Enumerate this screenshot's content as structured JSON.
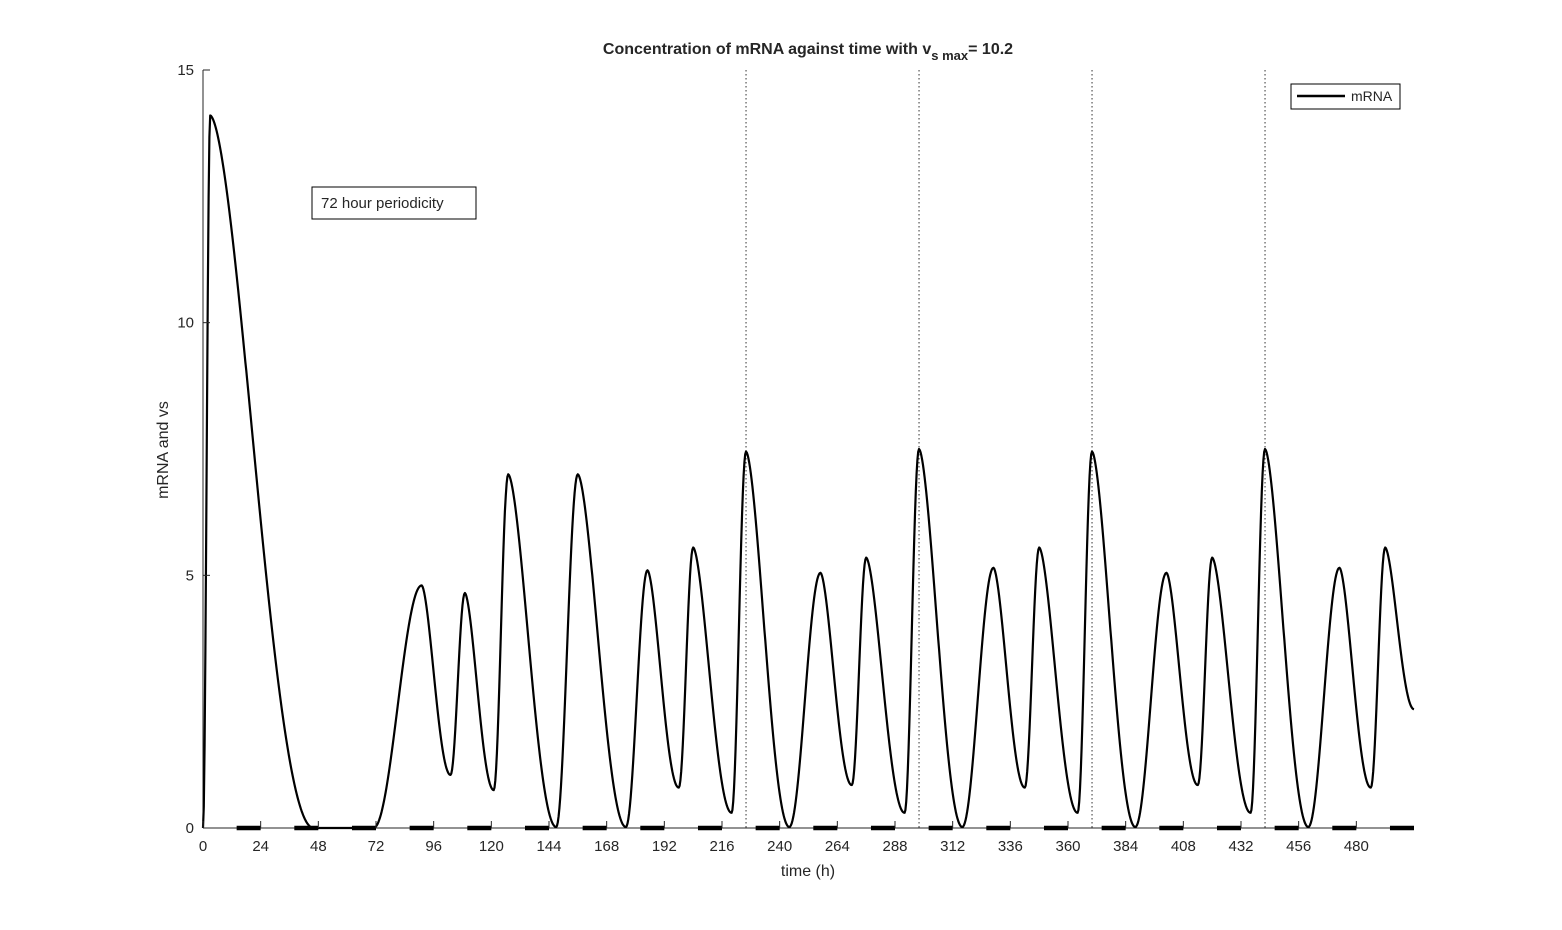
{
  "chart_data": {
    "type": "line",
    "title": {
      "prefix": "Concentration of mRNA against time with v",
      "subscript": "s max",
      "suffix": "= 10.2"
    },
    "xlabel": "time (h)",
    "ylabel": "mRNA and vs",
    "xlim": [
      0,
      504
    ],
    "ylim": [
      0,
      15
    ],
    "xticks": [
      0,
      24,
      48,
      72,
      96,
      120,
      144,
      168,
      192,
      216,
      240,
      264,
      288,
      312,
      336,
      360,
      384,
      408,
      432,
      456,
      480
    ],
    "yticks": [
      0,
      5,
      10,
      15
    ],
    "grid": false,
    "legend": {
      "placement": "top-right",
      "entries": [
        "mRNA"
      ]
    },
    "annotation": "72 hour periodicity",
    "vertical_markers": [
      226,
      298,
      370,
      442
    ],
    "series": [
      {
        "name": "mRNA",
        "color": "#000000",
        "peaks": [
          {
            "t": 3,
            "v": 14.1
          },
          {
            "t": 91,
            "v": 4.8
          },
          {
            "t": 109,
            "v": 4.65
          },
          {
            "t": 127,
            "v": 7.0
          },
          {
            "t": 156,
            "v": 7.0
          },
          {
            "t": 185,
            "v": 5.1
          },
          {
            "t": 204,
            "v": 5.55
          },
          {
            "t": 226,
            "v": 7.45
          },
          {
            "t": 257,
            "v": 5.05
          },
          {
            "t": 276,
            "v": 5.35
          },
          {
            "t": 298,
            "v": 7.5
          },
          {
            "t": 329,
            "v": 5.15
          },
          {
            "t": 348,
            "v": 5.55
          },
          {
            "t": 370,
            "v": 7.45
          },
          {
            "t": 401,
            "v": 5.05
          },
          {
            "t": 420,
            "v": 5.35
          },
          {
            "t": 442,
            "v": 7.5
          },
          {
            "t": 473,
            "v": 5.15
          },
          {
            "t": 492,
            "v": 5.55
          }
        ],
        "troughs": [
          {
            "t": 46,
            "v": 0.0
          },
          {
            "t": 71,
            "v": 0.0
          },
          {
            "t": 103,
            "v": 1.05
          },
          {
            "t": 121,
            "v": 0.75
          },
          {
            "t": 147,
            "v": 0.02
          },
          {
            "t": 176,
            "v": 0.02
          },
          {
            "t": 198,
            "v": 0.8
          },
          {
            "t": 220,
            "v": 0.3
          },
          {
            "t": 244,
            "v": 0.02
          },
          {
            "t": 270,
            "v": 0.85
          },
          {
            "t": 292,
            "v": 0.3
          },
          {
            "t": 316,
            "v": 0.02
          },
          {
            "t": 342,
            "v": 0.8
          },
          {
            "t": 364,
            "v": 0.3
          },
          {
            "t": 388,
            "v": 0.02
          },
          {
            "t": 414,
            "v": 0.85
          },
          {
            "t": 436,
            "v": 0.3
          },
          {
            "t": 460,
            "v": 0.02
          },
          {
            "t": 486,
            "v": 0.8
          }
        ],
        "start": {
          "t": 0,
          "v": 0.0
        },
        "end": {
          "t": 504,
          "v": 2.35
        }
      },
      {
        "name": "vs",
        "color": "#000000",
        "type": "segments",
        "on_intervals": [
          [
            14,
            24
          ],
          [
            38,
            48
          ],
          [
            62,
            72
          ],
          [
            86,
            96
          ],
          [
            110,
            120
          ],
          [
            134,
            144
          ],
          [
            158,
            168
          ],
          [
            182,
            192
          ],
          [
            206,
            216
          ],
          [
            230,
            240
          ],
          [
            254,
            264
          ],
          [
            278,
            288
          ],
          [
            302,
            312
          ],
          [
            326,
            336
          ],
          [
            350,
            360
          ],
          [
            374,
            384
          ],
          [
            398,
            408
          ],
          [
            422,
            432
          ],
          [
            446,
            456
          ],
          [
            470,
            480
          ],
          [
            494,
            504
          ]
        ],
        "value": 0.0
      }
    ]
  }
}
